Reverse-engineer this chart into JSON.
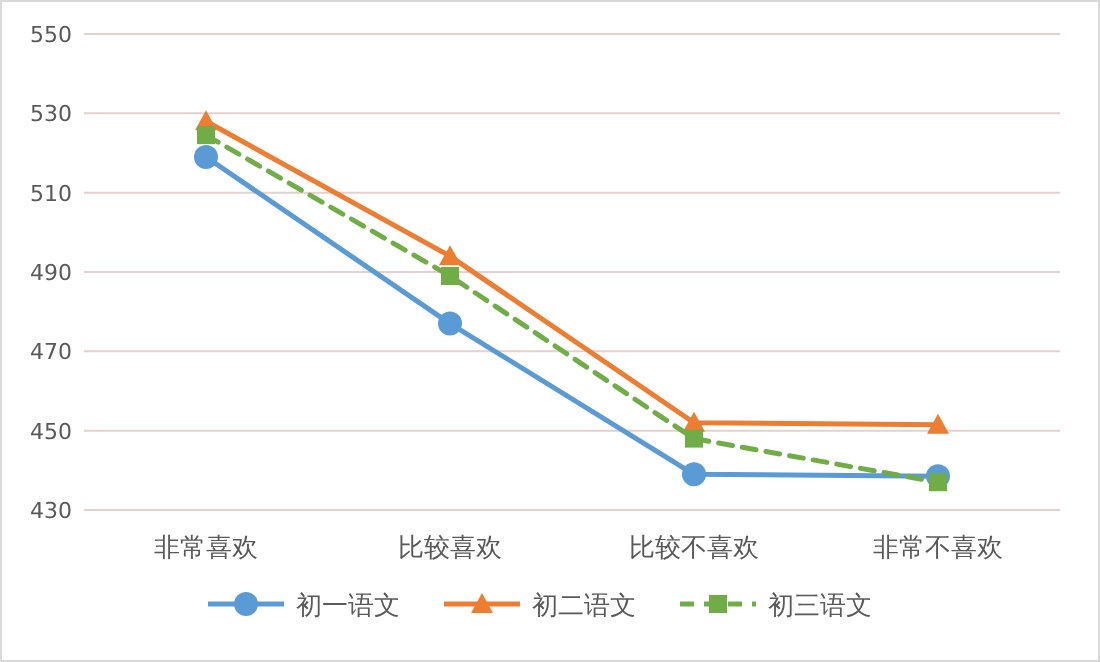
{
  "chart_data": {
    "type": "line",
    "categories": [
      "非常喜欢",
      "比较喜欢",
      "比较不喜欢",
      "非常不喜欢"
    ],
    "series": [
      {
        "name": "初一语文",
        "color": "#5b9bd5",
        "marker": "circle",
        "line_style": "solid",
        "values": [
          519,
          477,
          439,
          438.5
        ]
      },
      {
        "name": "初二语文",
        "color": "#ed7d31",
        "marker": "triangle",
        "line_style": "solid",
        "values": [
          528,
          494,
          452,
          451.5
        ]
      },
      {
        "name": "初三语文",
        "color": "#70ad47",
        "marker": "square",
        "line_style": "dashed",
        "values": [
          524.5,
          489,
          448,
          437
        ]
      }
    ],
    "ylim": [
      430,
      550
    ],
    "yticks": [
      430,
      450,
      470,
      490,
      510,
      530,
      550
    ],
    "grid": "y",
    "legend": "bottom"
  }
}
